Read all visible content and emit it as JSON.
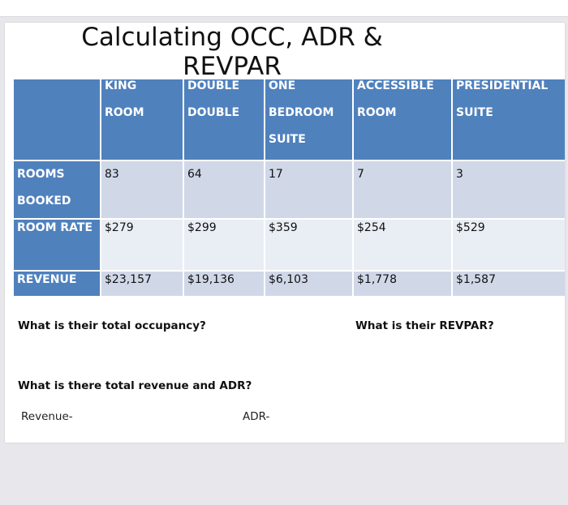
{
  "slide": {
    "title": "Calculating OCC, ADR &\nREVPAR"
  },
  "table": {
    "headers": [
      "",
      "KING\nROOM",
      "DOUBLE\nDOUBLE",
      "ONE\nBEDROOM\nSUITE",
      "ACCESSIBLE\nROOM",
      "PRESIDENTIAL\nSUITE"
    ],
    "rows": [
      {
        "label": "ROOMS\nBOOKED",
        "values": [
          "83",
          "64",
          "17",
          "7",
          "3"
        ]
      },
      {
        "label": "ROOM RATE",
        "values": [
          "$279",
          "$299",
          "$359",
          "$254",
          "$529"
        ]
      },
      {
        "label": "REVENUE",
        "values": [
          "$23,157",
          "$19,136",
          "$6,103",
          "$1,778",
          "$1,587"
        ]
      }
    ]
  },
  "questions": {
    "occupancy": "What is their total occupancy?",
    "revpar": "What is their REVPAR?",
    "revenue_adr": "What is there total revenue and ADR?",
    "revenue_label": "Revenue-",
    "adr_label": "ADR-"
  },
  "colors": {
    "header_blue": "#4f81bd",
    "row_dark": "#d0d8e8",
    "row_light": "#e9edf4"
  }
}
